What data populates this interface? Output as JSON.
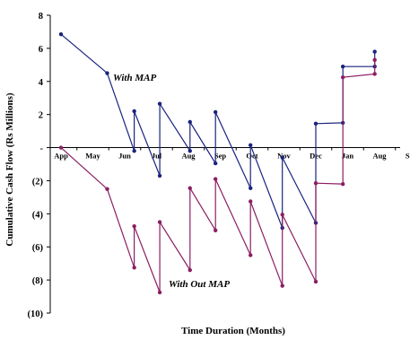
{
  "chart_data": {
    "type": "line",
    "title": "",
    "xlabel": "Time Duration (Months)",
    "ylabel": "Cumulative Cash Flow (Rs Millions)",
    "ylim": [
      -10,
      8
    ],
    "y_ticks": [
      {
        "value": 8,
        "label": "8"
      },
      {
        "value": 6,
        "label": "6"
      },
      {
        "value": 4,
        "label": "4"
      },
      {
        "value": 2,
        "label": "2"
      },
      {
        "value": 0,
        "label": "-"
      },
      {
        "value": -2,
        "label": "(2)"
      },
      {
        "value": -4,
        "label": "(4)"
      },
      {
        "value": -6,
        "label": "(6)"
      },
      {
        "value": -8,
        "label": "(8)"
      },
      {
        "value": -10,
        "label": "(10)"
      }
    ],
    "x_categories": [
      "App",
      "May",
      "Jun",
      "Jul",
      "Aug",
      "Sep",
      "Oct",
      "Nov",
      "Dec",
      "Jan",
      "Aug",
      "Sep"
    ],
    "xlim": [
      0,
      12
    ],
    "grid": false,
    "legend": "none",
    "series": [
      {
        "name": "With MAP",
        "color": "#1a237e",
        "points": [
          [
            0,
            6.85
          ],
          [
            1.45,
            4.5
          ],
          [
            2.3,
            -0.2
          ],
          [
            2.3,
            2.2
          ],
          [
            3.1,
            -1.7
          ],
          [
            3.1,
            2.65
          ],
          [
            4.05,
            -0.2
          ],
          [
            4.05,
            1.55
          ],
          [
            4.85,
            -0.95
          ],
          [
            4.85,
            2.15
          ],
          [
            5.95,
            -2.45
          ],
          [
            5.95,
            0.15
          ],
          [
            6.95,
            -4.85
          ],
          [
            6.95,
            -0.6
          ],
          [
            8.0,
            -4.55
          ],
          [
            8.0,
            1.45
          ],
          [
            8.85,
            1.5
          ],
          [
            8.85,
            4.9
          ],
          [
            9.85,
            4.9
          ],
          [
            9.85,
            5.8
          ]
        ]
      },
      {
        "name": "With Out MAP",
        "color": "#8b1e62",
        "points": [
          [
            0,
            0
          ],
          [
            1.45,
            -2.5
          ],
          [
            2.3,
            -7.25
          ],
          [
            2.3,
            -4.75
          ],
          [
            3.1,
            -8.75
          ],
          [
            3.1,
            -4.5
          ],
          [
            4.05,
            -7.4
          ],
          [
            4.05,
            -2.45
          ],
          [
            4.85,
            -5.0
          ],
          [
            4.85,
            -1.9
          ],
          [
            5.95,
            -6.5
          ],
          [
            5.95,
            -3.25
          ],
          [
            6.95,
            -8.35
          ],
          [
            6.95,
            -4.05
          ],
          [
            8.0,
            -8.1
          ],
          [
            8.0,
            -2.15
          ],
          [
            8.85,
            -2.2
          ],
          [
            8.85,
            4.25
          ],
          [
            9.85,
            4.45
          ],
          [
            9.85,
            5.3
          ]
        ]
      }
    ],
    "annotations": [
      {
        "text": "With MAP",
        "series": 0
      },
      {
        "text": "With Out MAP",
        "series": 1
      }
    ]
  }
}
